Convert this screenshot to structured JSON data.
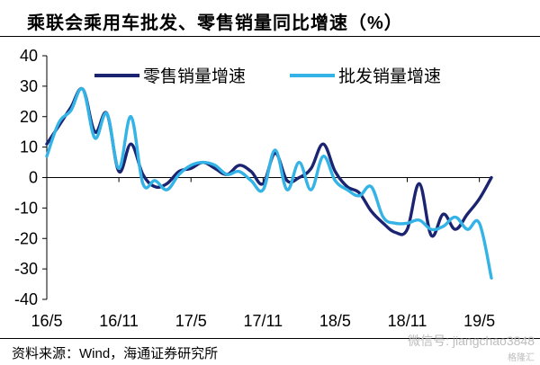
{
  "title": "乘联会乘用车批发、零售销量同比增速（%）",
  "source": "资料来源：Wind，海通证券研究所",
  "watermark": {
    "main": "微信号: jiangchao3848",
    "sub": "格隆汇"
  },
  "chart_data": {
    "type": "line",
    "xlabel": "",
    "ylabel": "",
    "ylim": [
      -40,
      40
    ],
    "yticks": [
      -40,
      -30,
      -20,
      -10,
      0,
      10,
      20,
      30,
      40
    ],
    "x_tick_labels": [
      "16/5",
      "16/11",
      "17/5",
      "17/11",
      "18/5",
      "18/11",
      "19/5"
    ],
    "x_tick_index": [
      0,
      6,
      12,
      18,
      24,
      30,
      36
    ],
    "grid": false,
    "legend_position": "top",
    "colors": {
      "retail": "#1a2470",
      "wholesale": "#33b3e6"
    },
    "series": [
      {
        "name": "零售销量增速",
        "color_key": "retail",
        "points": [
          [
            0,
            11
          ],
          [
            1,
            17
          ],
          [
            2,
            23
          ],
          [
            3,
            29
          ],
          [
            4,
            15
          ],
          [
            5,
            21
          ],
          [
            6,
            2
          ],
          [
            7,
            11
          ],
          [
            8,
            1
          ],
          [
            9,
            -3
          ],
          [
            10,
            -2
          ],
          [
            11,
            2
          ],
          [
            12,
            3
          ],
          [
            13,
            5
          ],
          [
            14,
            3
          ],
          [
            15,
            1
          ],
          [
            16,
            4
          ],
          [
            17,
            2
          ],
          [
            18,
            -2
          ],
          [
            19,
            8
          ],
          [
            20,
            -1
          ],
          [
            21,
            0
          ],
          [
            22,
            3
          ],
          [
            23,
            11
          ],
          [
            24,
            2
          ],
          [
            25,
            -3
          ],
          [
            26,
            -5
          ],
          [
            27,
            -11
          ],
          [
            28,
            -15
          ],
          [
            29,
            -18
          ],
          [
            30,
            -17
          ],
          [
            31,
            -2
          ],
          [
            32,
            -19
          ],
          [
            33,
            -12
          ],
          [
            34,
            -17
          ],
          [
            35,
            -12
          ],
          [
            36,
            -7
          ],
          [
            37,
            0
          ]
        ]
      },
      {
        "name": "批发销量增速",
        "color_key": "wholesale",
        "points": [
          [
            0,
            7
          ],
          [
            1,
            18
          ],
          [
            2,
            22
          ],
          [
            3,
            29
          ],
          [
            4,
            13
          ],
          [
            5,
            21
          ],
          [
            6,
            3
          ],
          [
            7,
            20
          ],
          [
            8,
            -2
          ],
          [
            9,
            -1
          ],
          [
            10,
            -4
          ],
          [
            11,
            1
          ],
          [
            12,
            4
          ],
          [
            13,
            5
          ],
          [
            14,
            4
          ],
          [
            15,
            1
          ],
          [
            16,
            2
          ],
          [
            17,
            -1
          ],
          [
            18,
            -4
          ],
          [
            19,
            9
          ],
          [
            20,
            -4
          ],
          [
            21,
            5
          ],
          [
            22,
            -4
          ],
          [
            23,
            7
          ],
          [
            24,
            -1
          ],
          [
            25,
            -4
          ],
          [
            26,
            -6
          ],
          [
            27,
            -3
          ],
          [
            28,
            -13
          ],
          [
            29,
            -15
          ],
          [
            30,
            -15
          ],
          [
            31,
            -14
          ],
          [
            32,
            -17
          ],
          [
            33,
            -16
          ],
          [
            34,
            -13
          ],
          [
            35,
            -17
          ],
          [
            36,
            -15
          ],
          [
            37,
            -33
          ]
        ]
      }
    ]
  }
}
